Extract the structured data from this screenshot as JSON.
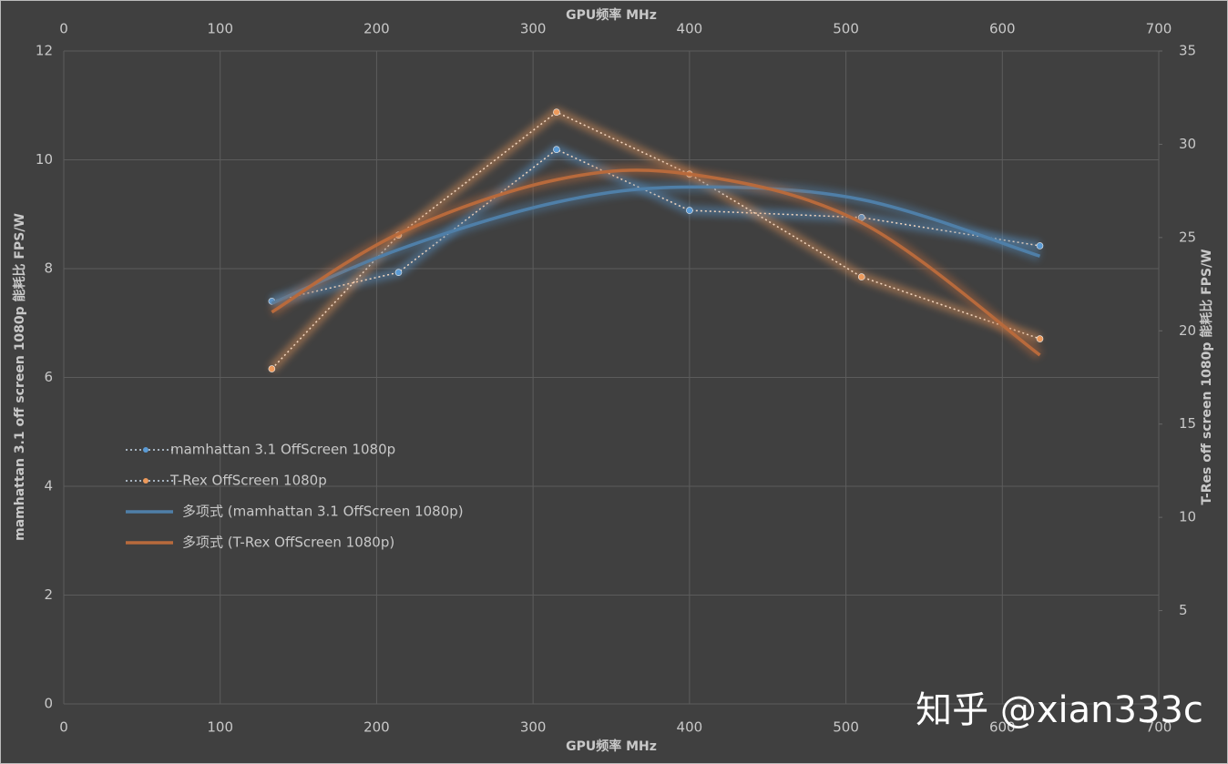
{
  "chart_data": {
    "type": "line",
    "xlabel": "GPU频率 MHz",
    "ylabel": "mamhattan 3.1 off screen 1080p 能耗比 FPS/W",
    "y2label": "T-Res off screen 1080p 能耗比 FPS/W",
    "watermark": "知乎 @xian333c",
    "x": [
      133,
      214,
      315,
      400,
      510,
      624
    ],
    "xlim": [
      0,
      700
    ],
    "xticks": [
      0,
      100,
      200,
      300,
      400,
      500,
      600,
      700
    ],
    "ylim": [
      0,
      12
    ],
    "yticks": [
      0,
      2,
      4,
      6,
      8,
      10,
      12
    ],
    "y2lim": [
      0,
      35
    ],
    "y2ticks": [
      5,
      10,
      15,
      20,
      25,
      30,
      35
    ],
    "grid": true,
    "series": [
      {
        "name": "mamhattan 3.1 OffScreen 1080p",
        "color": "#5b9bd5",
        "line_style": "dotted",
        "axis": "y",
        "values": [
          7.4,
          7.93,
          10.19,
          9.07,
          8.94,
          8.42
        ]
      },
      {
        "name": "T-Rex OffScreen 1080p",
        "color": "#ed9a5c",
        "line_style": "dotted",
        "axis": "y2",
        "values": [
          17.96,
          25.13,
          31.72,
          28.4,
          22.89,
          19.57
        ]
      },
      {
        "name": "多项式 (mamhattan 3.1 OffScreen 1080p)",
        "color": "#4f7fa8",
        "line_style": "solid",
        "axis": "y",
        "values": [
          7.36,
          8.35,
          9.22,
          9.5,
          9.27,
          8.23
        ]
      },
      {
        "name": "多项式 (T-Rex OffScreen 1080p)",
        "color": "#b86a3c",
        "line_style": "solid",
        "axis": "y2",
        "values": [
          21.0,
          25.2,
          28.1,
          28.4,
          25.8,
          18.7
        ]
      }
    ]
  }
}
